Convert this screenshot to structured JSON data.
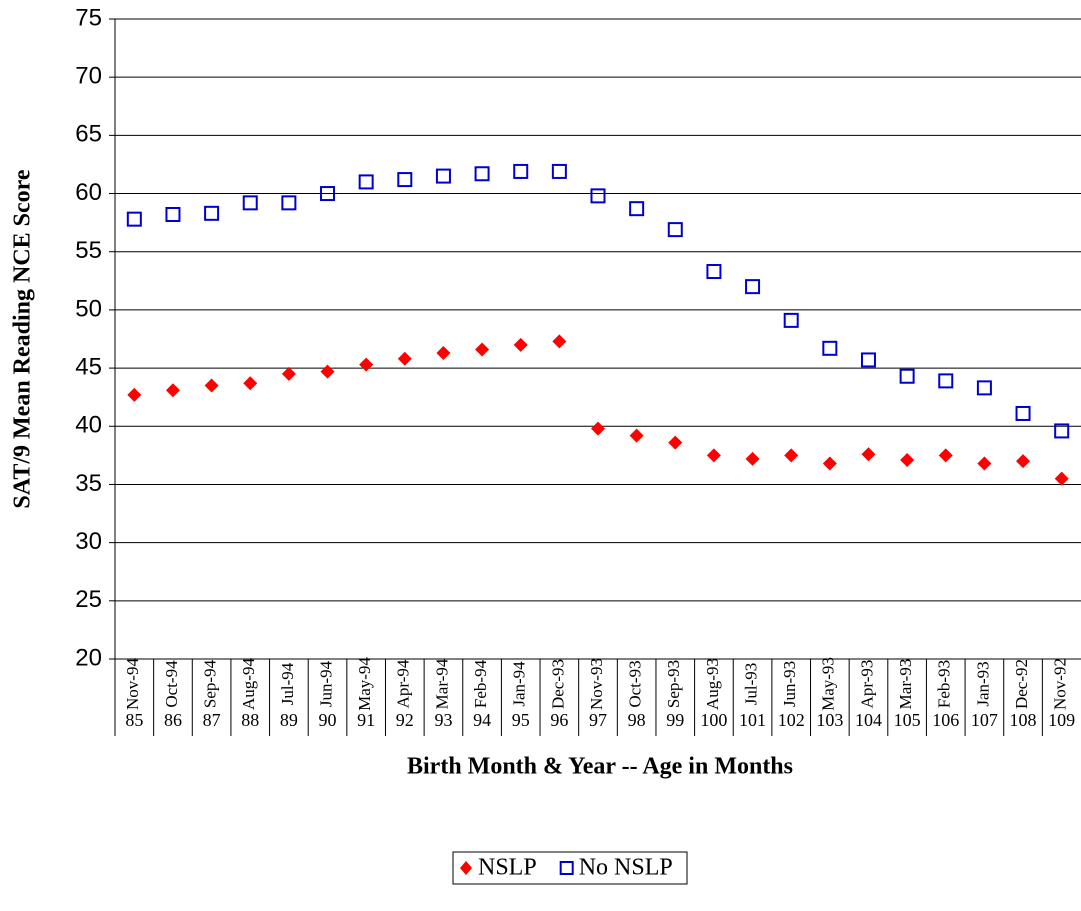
{
  "chart_data": {
    "type": "scatter",
    "x_title": "Birth Month & Year -- Age in Months",
    "y_title": "SAT/9 Mean Reading NCE Score",
    "categories": [
      "Nov-94",
      "Oct-94",
      "Sep-94",
      "Aug-94",
      "Jul-94",
      "Jun-94",
      "May-94",
      "Apr-94",
      "Mar-94",
      "Feb-94",
      "Jan-94",
      "Dec-93",
      "Nov-93",
      "Oct-93",
      "Sep-93",
      "Aug-93",
      "Jul-93",
      "Jun-93",
      "May-93",
      "Apr-93",
      "Mar-93",
      "Feb-93",
      "Jan-93",
      "Dec-92",
      "Nov-92"
    ],
    "ages": [
      85,
      86,
      87,
      88,
      89,
      90,
      91,
      92,
      93,
      94,
      95,
      96,
      97,
      98,
      99,
      100,
      101,
      102,
      103,
      104,
      105,
      106,
      107,
      108,
      109
    ],
    "series": [
      {
        "name": "NSLP",
        "color": "#ff0000",
        "marker": "diamond",
        "values": [
          42.7,
          43.1,
          43.5,
          43.7,
          44.5,
          44.7,
          45.3,
          45.8,
          46.3,
          46.6,
          47.0,
          47.3,
          39.8,
          39.2,
          38.6,
          37.5,
          37.2,
          37.5,
          36.8,
          37.6,
          37.1,
          37.5,
          36.8,
          37.0,
          35.5
        ]
      },
      {
        "name": "No NSLP",
        "color": "#0000cc",
        "marker": "square",
        "values": [
          57.8,
          58.2,
          58.3,
          59.2,
          59.2,
          60.0,
          61.0,
          61.2,
          61.5,
          61.7,
          61.9,
          61.9,
          59.8,
          58.7,
          56.9,
          53.3,
          52.0,
          49.1,
          46.7,
          45.7,
          44.3,
          43.9,
          43.3,
          41.1,
          39.6
        ]
      }
    ],
    "ylim": [
      20,
      75
    ],
    "yticks": [
      20,
      25,
      30,
      35,
      40,
      45,
      50,
      55,
      60,
      65,
      70,
      75
    ],
    "grid": true,
    "legend": "bottom"
  }
}
